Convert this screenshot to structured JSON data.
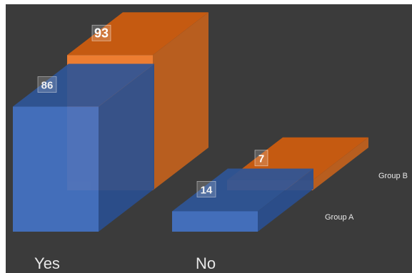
{
  "chart_data": {
    "type": "bar",
    "style": "3d-clustered-column",
    "categories": [
      "Yes",
      "No"
    ],
    "series": [
      {
        "name": "Group A",
        "values": [
          86,
          14
        ]
      },
      {
        "name": "Group B",
        "values": [
          93,
          7
        ]
      }
    ],
    "title": "",
    "xlabel": "",
    "ylabel": "",
    "ylim": [
      0,
      100
    ],
    "grid": false,
    "legend": "series labels at right end of each row",
    "data_labels": true
  },
  "colors": {
    "background": "#3b3b3b",
    "group_a_front": "#4472c4",
    "group_a_top": "#2f5597",
    "group_a_side": "#2a4f8f",
    "group_b_front": "#ed7d31",
    "group_b_top": "#c55a11",
    "group_b_side": "#b85e1f",
    "label_box": "rgba(255,255,255,0.18)",
    "text": "#ffffff",
    "category_text": "#e8e8e8"
  }
}
